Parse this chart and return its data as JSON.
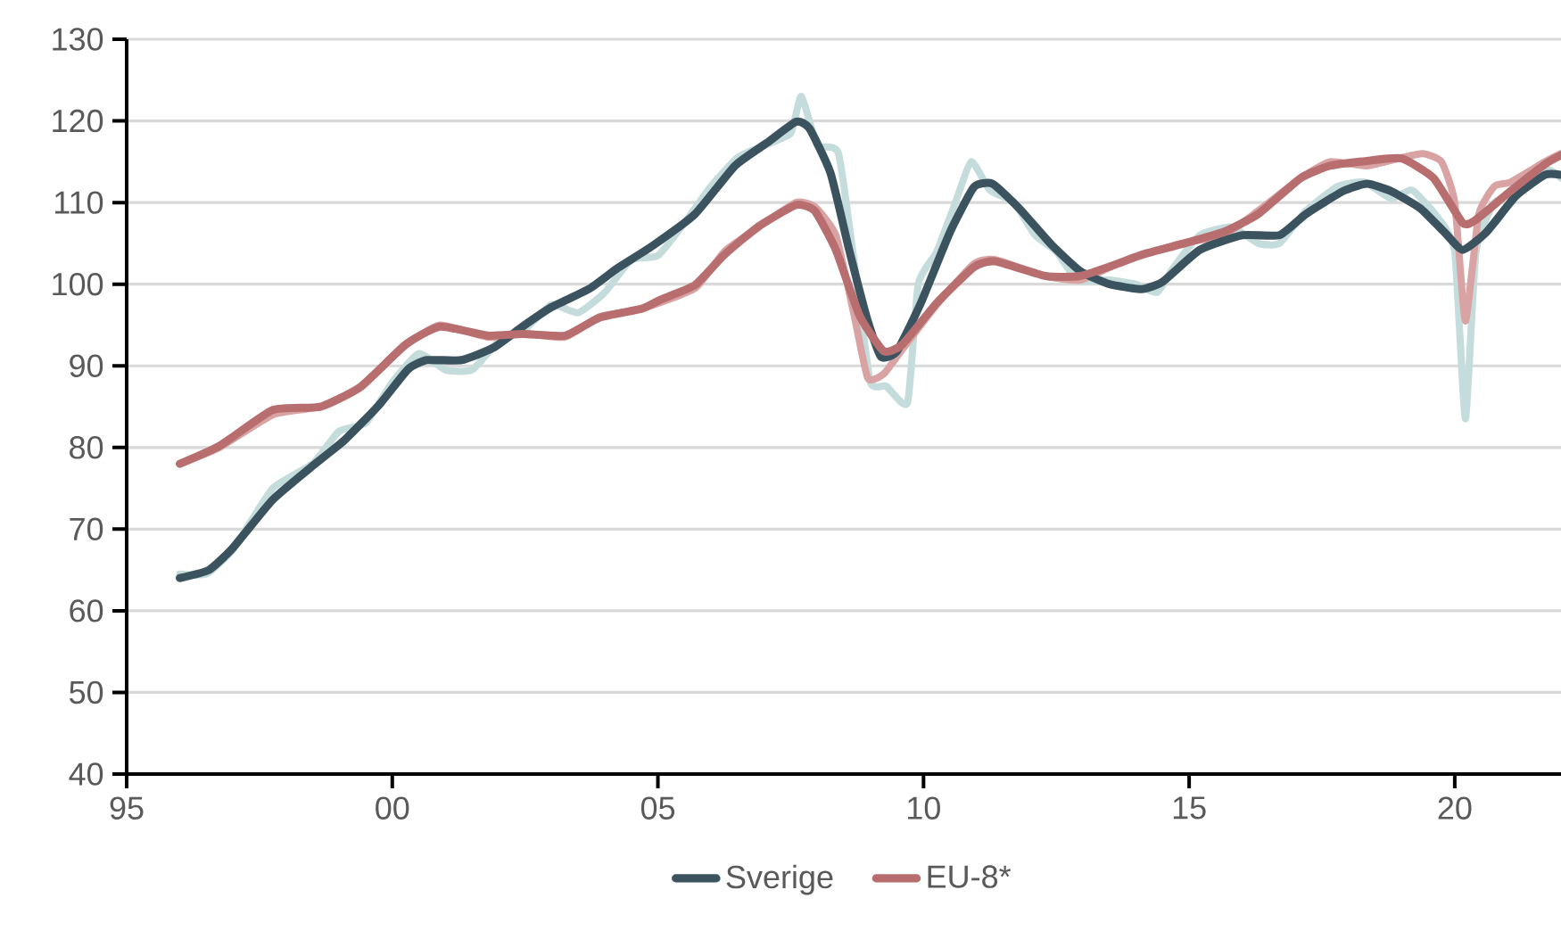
{
  "chart_data": {
    "type": "line",
    "xlim": [
      1995,
      2022
    ],
    "ylim": [
      40,
      130
    ],
    "xticks": [
      {
        "value": 1995,
        "label": "95"
      },
      {
        "value": 2000,
        "label": "00"
      },
      {
        "value": 2005,
        "label": "05"
      },
      {
        "value": 2010,
        "label": "10"
      },
      {
        "value": 2015,
        "label": "15"
      },
      {
        "value": 2020,
        "label": "20"
      }
    ],
    "yticks": [
      40,
      50,
      60,
      70,
      80,
      90,
      100,
      110,
      120,
      130
    ],
    "grid": "y",
    "legend": "bottom",
    "marker": "none",
    "line_style": "solid",
    "series": [
      {
        "color": "#c5dcdc",
        "x": [
          1996.0,
          1996.5,
          1997.0,
          1997.75,
          1998.5,
          1999.0,
          1999.5,
          2000.0,
          2000.5,
          2001.0,
          2001.5,
          2002.0,
          2002.5,
          2003.0,
          2003.5,
          2004.0,
          2004.5,
          2005.0,
          2005.5,
          2006.0,
          2006.5,
          2007.0,
          2007.5,
          2007.7,
          2008.0,
          2008.4,
          2008.75,
          2009.0,
          2009.3,
          2009.7,
          2009.9,
          2010.25,
          2010.6,
          2010.9,
          2011.25,
          2011.7,
          2012.1,
          2012.5,
          2012.9,
          2013.5,
          2014.0,
          2014.4,
          2014.7,
          2015.2,
          2015.8,
          2016.3,
          2016.7,
          2017.2,
          2017.8,
          2018.3,
          2018.8,
          2019.2,
          2019.7,
          2020.0,
          2020.2,
          2020.4,
          2020.75,
          2021.25,
          2021.75,
          2022.0
        ],
        "values": [
          64.5,
          64.5,
          67.5,
          75,
          78,
          82,
          83,
          88,
          91.5,
          89.5,
          89.5,
          93,
          94.5,
          97.5,
          96.5,
          99,
          103,
          103.5,
          107.5,
          112,
          115.5,
          117,
          118.5,
          123,
          117,
          116,
          100,
          88,
          87.5,
          85.5,
          100,
          104,
          110,
          115,
          111.5,
          110,
          106,
          104,
          100.5,
          100.5,
          100,
          99,
          102,
          106,
          107,
          105,
          105,
          109,
          112,
          112.5,
          110.5,
          111.5,
          108,
          104,
          83.5,
          104,
          110,
          111.5,
          114,
          113
        ]
      },
      {
        "color": "#d9a3a3",
        "x": [
          1996.0,
          1996.75,
          1997.75,
          1998.65,
          1999.4,
          2000.25,
          2000.9,
          2001.8,
          2002.45,
          2003.25,
          2003.9,
          2004.7,
          2005.7,
          2006.25,
          2006.9,
          2007.6,
          2007.95,
          2008.35,
          2008.7,
          2008.95,
          2009.25,
          2009.6,
          2010.25,
          2010.95,
          2011.35,
          2012.3,
          2012.95,
          2013.65,
          2014.1,
          2014.85,
          2015.65,
          2016.3,
          2017.1,
          2017.65,
          2018.35,
          2019.0,
          2019.4,
          2019.75,
          2020.0,
          2020.2,
          2020.45,
          2020.75,
          2021.05,
          2021.7,
          2022.0
        ],
        "values": [
          78,
          80,
          84,
          85,
          87.5,
          92.5,
          95,
          93.5,
          94,
          93.5,
          96,
          97,
          99.5,
          104,
          107,
          110,
          109.5,
          106,
          96,
          88.5,
          89,
          92,
          97.5,
          102.5,
          103,
          101,
          100.5,
          102.5,
          103.5,
          105,
          106,
          109,
          113,
          115,
          114.5,
          115.5,
          116,
          115,
          110,
          95.5,
          108.5,
          112,
          112.5,
          115,
          116
        ]
      },
      {
        "name": "Sverige",
        "color": "#3b535e",
        "x": [
          1996.0,
          1996.55,
          1997.0,
          1997.75,
          1998.55,
          1999.1,
          1999.75,
          2000.3,
          2000.65,
          2001.3,
          2001.9,
          2002.45,
          2003.0,
          2003.7,
          2004.25,
          2004.9,
          2005.7,
          2006.45,
          2007.05,
          2007.6,
          2007.85,
          2008.25,
          2008.6,
          2008.95,
          2009.2,
          2009.5,
          2009.95,
          2010.5,
          2010.95,
          2011.3,
          2011.8,
          2012.4,
          2012.95,
          2013.5,
          2014.1,
          2014.5,
          2015.2,
          2016.0,
          2016.7,
          2017.2,
          2017.9,
          2018.35,
          2018.8,
          2019.35,
          2019.8,
          2020.15,
          2020.6,
          2021.15,
          2021.7,
          2022.0
        ],
        "values": [
          64,
          65,
          67.7,
          73.6,
          78,
          80.9,
          85.2,
          89.6,
          90.7,
          90.7,
          92.2,
          94.8,
          97.2,
          99.4,
          102,
          104.7,
          108.6,
          114.5,
          117.3,
          119.9,
          119.1,
          113.6,
          104.2,
          95.5,
          91.1,
          91.8,
          97.7,
          106.4,
          111.9,
          112.3,
          109.3,
          104.9,
          101.6,
          100,
          99.4,
          100.3,
          104.2,
          106,
          106,
          108.6,
          111.4,
          112.3,
          111.4,
          109.3,
          106.4,
          104.2,
          106.4,
          110.8,
          113.4,
          113.4
        ]
      },
      {
        "name": "EU-8*",
        "color": "#b86e6e",
        "x": [
          1996.0,
          1996.75,
          1997.75,
          1998.65,
          1999.4,
          2000.25,
          2000.9,
          2001.8,
          2002.45,
          2003.25,
          2003.9,
          2004.7,
          2005.05,
          2005.7,
          2006.25,
          2006.9,
          2007.6,
          2007.95,
          2008.35,
          2008.8,
          2009.25,
          2009.6,
          2010.25,
          2010.95,
          2011.35,
          2012.3,
          2012.95,
          2013.65,
          2014.1,
          2014.85,
          2015.65,
          2016.3,
          2017.1,
          2017.65,
          2018.35,
          2019.0,
          2019.6,
          2020.15,
          2020.4,
          2021.05,
          2021.7,
          2022.0
        ],
        "values": [
          78,
          80.2,
          84.6,
          85,
          87.4,
          92.6,
          94.8,
          93.7,
          93.9,
          93.7,
          95.9,
          97,
          98.1,
          99.9,
          103.6,
          107.1,
          109.7,
          109,
          104.2,
          96.1,
          91.8,
          92.6,
          97.7,
          102.1,
          102.8,
          101,
          101,
          102.5,
          103.6,
          104.9,
          106.4,
          108.6,
          113,
          114.5,
          115.1,
          115.4,
          113,
          107.5,
          107.9,
          111.4,
          114.7,
          115.8
        ]
      }
    ]
  }
}
